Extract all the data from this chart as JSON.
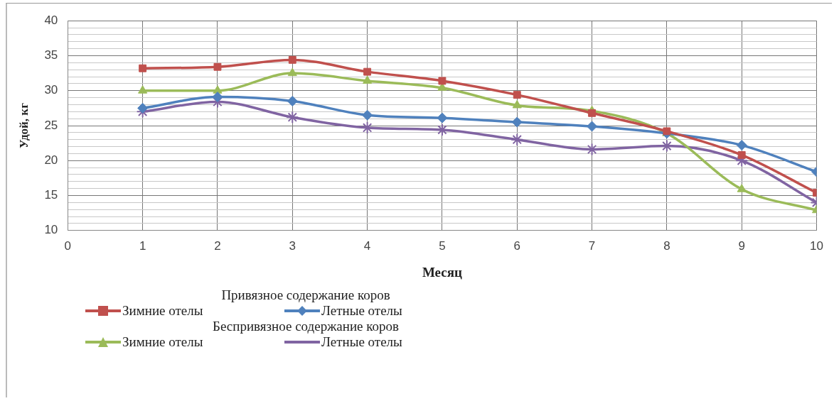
{
  "chart_data": {
    "type": "line",
    "xlabel": "Месяц",
    "ylabel": "Удой, кг",
    "x": [
      1,
      2,
      3,
      4,
      5,
      6,
      7,
      8,
      9,
      10
    ],
    "xlim": [
      0,
      10
    ],
    "xticks": [
      0,
      1,
      2,
      3,
      4,
      5,
      6,
      7,
      8,
      9,
      10
    ],
    "ylim": [
      10,
      40
    ],
    "yticks": [
      10,
      {
        "value": 11,
        "label": null
      },
      {
        "value": 12,
        "label": null
      },
      {
        "value": 13,
        "label": null
      },
      {
        "value": 14,
        "label": null
      },
      15,
      {
        "value": 16,
        "label": null
      },
      {
        "value": 17,
        "label": null
      },
      {
        "value": 18,
        "label": null
      },
      {
        "value": 19,
        "label": null
      },
      20,
      {
        "value": 21,
        "label": null
      },
      {
        "value": 22,
        "label": null
      },
      {
        "value": 23,
        "label": null
      },
      {
        "value": 24,
        "label": null
      },
      25,
      {
        "value": 26,
        "label": null
      },
      {
        "value": 27,
        "label": null
      },
      {
        "value": 28,
        "label": null
      },
      {
        "value": 29,
        "label": null
      },
      30,
      {
        "value": 31,
        "label": null
      },
      {
        "value": 32,
        "label": null
      },
      {
        "value": 33,
        "label": null
      },
      {
        "value": 34,
        "label": null
      },
      35,
      {
        "value": 36,
        "label": null
      },
      {
        "value": 37,
        "label": null
      },
      {
        "value": 38,
        "label": null
      },
      {
        "value": 39,
        "label": null
      },
      40
    ],
    "grid": true,
    "legend": "bottom",
    "line_style": "solid",
    "annotations": [
      "Привязное содержание коров",
      "Беспривязное содержание коров"
    ],
    "series": [
      {
        "name": "Зимние отелы",
        "color": "#c0504d",
        "marker": "square",
        "values": [
          33.2,
          33.4,
          34.4,
          32.7,
          31.4,
          29.4,
          26.8,
          24.2,
          20.8,
          15.4
        ]
      },
      {
        "name": "Летные отелы",
        "color": "#4f81bd",
        "marker": "diamond",
        "values": [
          27.5,
          29.1,
          28.5,
          26.5,
          26.1,
          25.5,
          24.9,
          23.9,
          22.2,
          18.4
        ]
      },
      {
        "name": "Зимние отелы",
        "color": "#9bbb59",
        "marker": "triangle",
        "values": [
          30.0,
          30.0,
          32.5,
          31.4,
          30.4,
          27.9,
          27.1,
          23.9,
          15.9,
          12.9
        ]
      },
      {
        "name": "Летные отелы",
        "color": "#8064a2",
        "marker": "cross",
        "values": [
          27.0,
          28.4,
          26.2,
          24.7,
          24.4,
          23.0,
          21.6,
          22.1,
          20.0,
          14.0
        ]
      }
    ]
  }
}
